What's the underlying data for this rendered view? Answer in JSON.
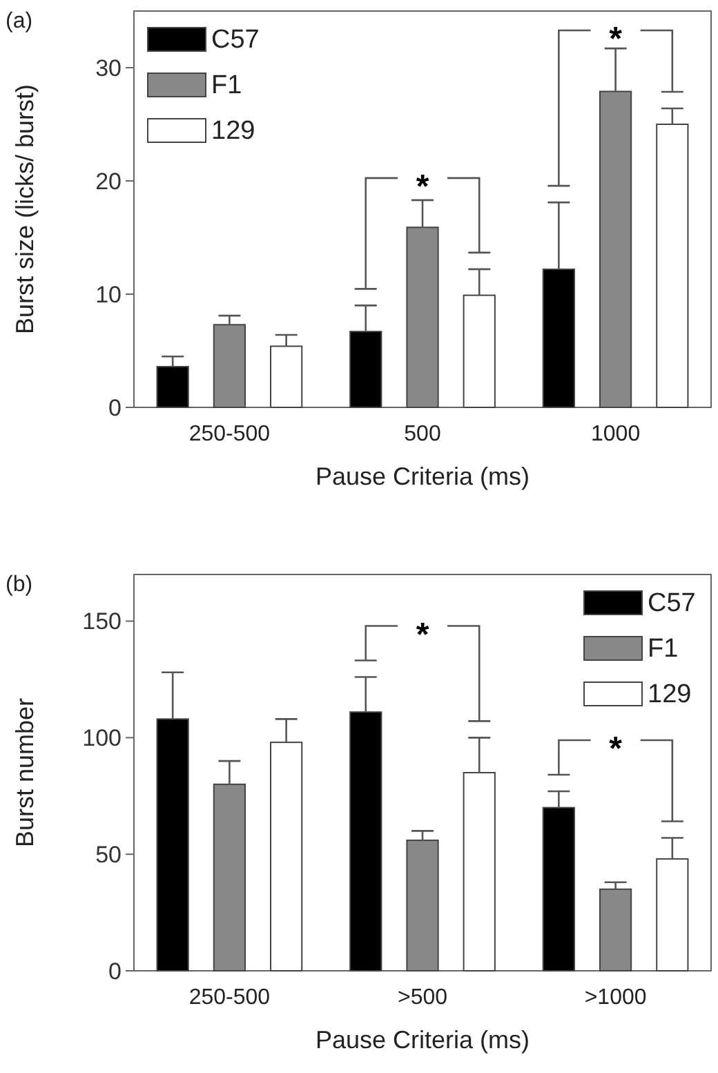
{
  "chart_data": [
    {
      "type": "bar",
      "title": "(a)",
      "xlabel": "Pause Criteria (ms)",
      "ylabel": "Burst size (licks/ burst)",
      "categories": [
        "250-500",
        "500",
        "1000"
      ],
      "series": [
        {
          "name": "C57",
          "color": "#000000",
          "values": [
            3.6,
            6.7,
            12.2
          ],
          "errors": [
            0.9,
            2.3,
            5.9
          ]
        },
        {
          "name": "F1",
          "color": "#888888",
          "values": [
            7.3,
            15.9,
            27.9
          ],
          "errors": [
            0.8,
            2.4,
            3.8
          ]
        },
        {
          "name": "129",
          "color": "#ffffff",
          "values": [
            5.4,
            9.9,
            25.0
          ],
          "errors": [
            1.0,
            2.3,
            1.4
          ]
        }
      ],
      "ylim": [
        0,
        35
      ],
      "yticks": [
        0,
        10,
        20,
        30
      ],
      "legend": "top left",
      "annotations": [
        "*",
        "*"
      ]
    },
    {
      "type": "bar",
      "title": "(b)",
      "xlabel": "Pause Criteria (ms)",
      "ylabel": "Burst number",
      "categories": [
        "250-500",
        ">500",
        ">1000"
      ],
      "series": [
        {
          "name": "C57",
          "color": "#000000",
          "values": [
            108,
            111,
            70
          ],
          "errors": [
            20,
            15,
            7
          ]
        },
        {
          "name": "F1",
          "color": "#888888",
          "values": [
            80,
            56,
            35
          ],
          "errors": [
            10,
            4,
            3
          ]
        },
        {
          "name": "129",
          "color": "#ffffff",
          "values": [
            98,
            85,
            48
          ],
          "errors": [
            10,
            15,
            9
          ]
        }
      ],
      "ylim": [
        0,
        170
      ],
      "yticks": [
        0,
        50,
        100,
        150
      ],
      "legend": "top right",
      "annotations": [
        "*",
        "*"
      ]
    }
  ]
}
